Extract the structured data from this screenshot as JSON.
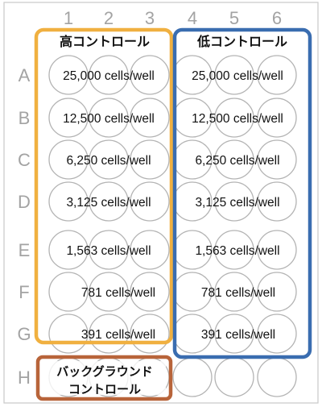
{
  "columns": [
    "1",
    "2",
    "3",
    "4",
    "5",
    "6"
  ],
  "rows": [
    "A",
    "B",
    "C",
    "D",
    "E",
    "F",
    "G",
    "H"
  ],
  "groups": {
    "high": {
      "title": "高コントロール",
      "color": "#f0b040"
    },
    "low": {
      "title": "低コントロール",
      "color": "#3a6db0"
    },
    "background": {
      "title_line1": "バックグラウンド",
      "title_line2": "コントロール",
      "color": "#b8643a"
    }
  },
  "densities": {
    "high": [
      "25,000 cells/well",
      "12,500 cells/well",
      "6,250 cells/well",
      "3,125 cells/well",
      "1,563 cells/well",
      "781 cells/well",
      "391 cells/well"
    ],
    "low": [
      "25,000 cells/well",
      "12,500 cells/well",
      "6,250 cells/well",
      "3,125 cells/well",
      "1,563 cells/well",
      "781 cells/well",
      "391 cells/well"
    ]
  },
  "colors": {
    "plate_border": "#c8c8c8",
    "well_stroke": "#b3b3b3",
    "label_gray": "#a3a3a3"
  }
}
